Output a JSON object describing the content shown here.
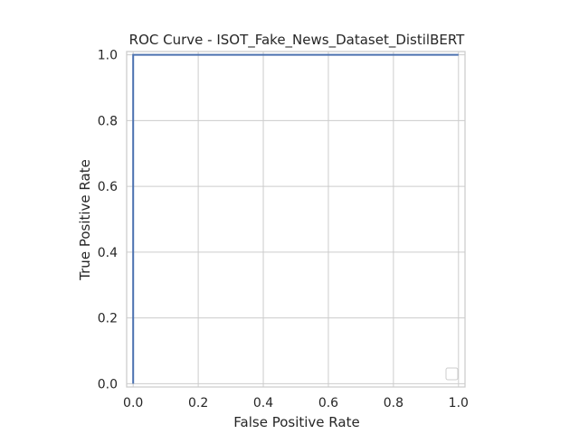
{
  "chart_data": {
    "type": "line",
    "title": "ROC Curve - ISOT_Fake_News_Dataset_DistilBERT",
    "xlabel": "False Positive Rate",
    "ylabel": "True Positive Rate",
    "xlim": [
      -0.02,
      1.02
    ],
    "ylim": [
      -0.01,
      1.01
    ],
    "xticks": [
      0.0,
      0.2,
      0.4,
      0.6,
      0.8,
      1.0
    ],
    "yticks": [
      0.0,
      0.2,
      0.4,
      0.6,
      0.8,
      1.0
    ],
    "xtick_labels": [
      "0.0",
      "0.2",
      "0.4",
      "0.6",
      "0.8",
      "1.0"
    ],
    "ytick_labels": [
      "0.0",
      "0.2",
      "0.4",
      "0.6",
      "0.8",
      "1.0"
    ],
    "grid": true,
    "legend": "lower-right",
    "series": [
      {
        "color": "#4c72b0",
        "x": [
          0.0,
          0.0,
          1.0
        ],
        "y": [
          0.0,
          1.0,
          1.0
        ]
      }
    ]
  }
}
